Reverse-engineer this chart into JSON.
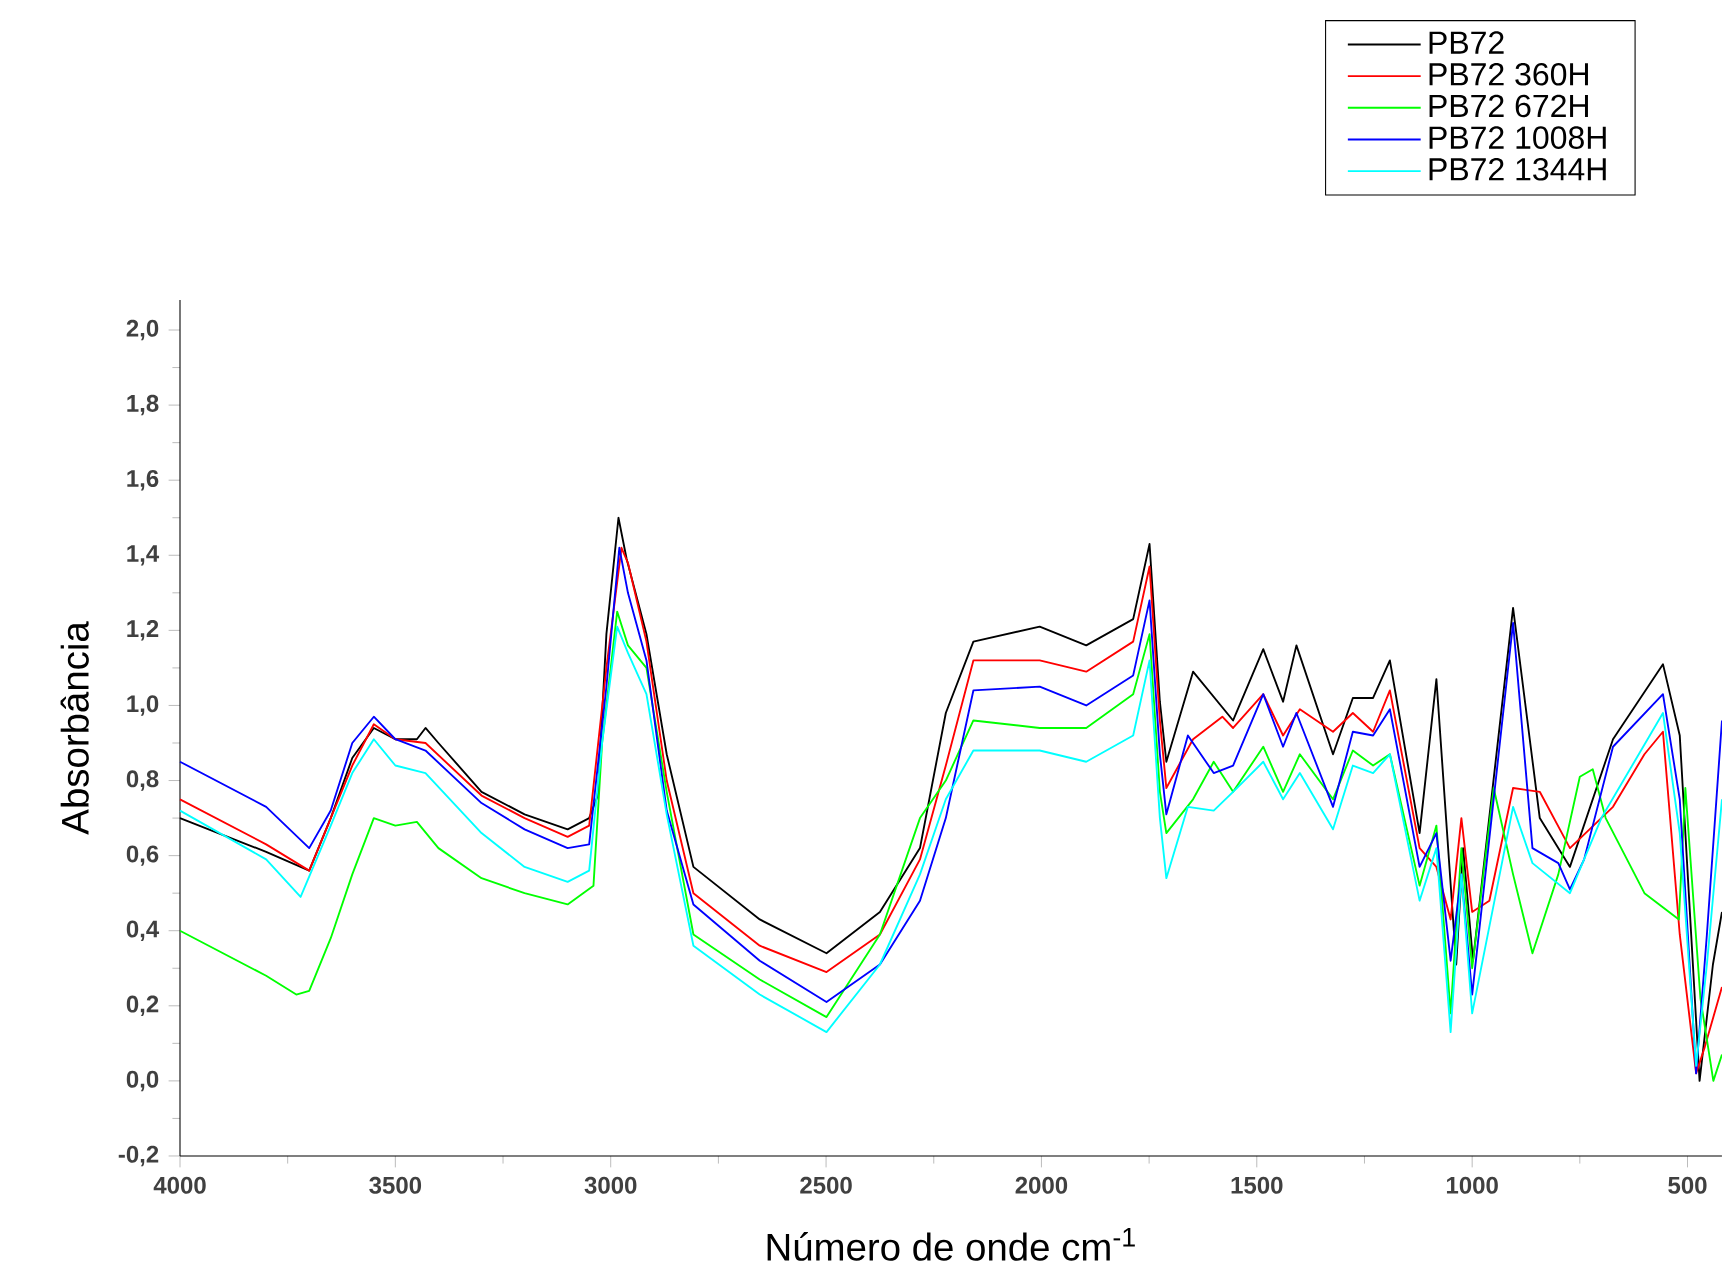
{
  "chart_data": {
    "type": "line",
    "xlabel": "Número de onde cm$^{-1}$",
    "ylabel": "Absorbância",
    "xlim": [
      4000,
      420
    ],
    "xticks": [
      4000,
      3500,
      3000,
      2500,
      2000,
      1500,
      1000,
      500
    ],
    "ylim": [
      -0.2,
      2.08
    ],
    "yticks": [
      {
        "value": -0.2,
        "label": "-0,2"
      },
      {
        "value": 0.0,
        "label": "0,0"
      },
      {
        "value": 0.2,
        "label": "0,2"
      },
      {
        "value": 0.4,
        "label": "0,4"
      },
      {
        "value": 0.6,
        "label": "0,6"
      },
      {
        "value": 0.8,
        "label": "0,8"
      },
      {
        "value": 1.0,
        "label": "1,0"
      },
      {
        "value": 1.2,
        "label": "1,2"
      },
      {
        "value": 1.4,
        "label": "1,4"
      },
      {
        "value": 1.6,
        "label": "1,6"
      },
      {
        "value": 1.8,
        "label": "1,8"
      },
      {
        "value": 2.0,
        "label": "2,0"
      }
    ],
    "legend": "top right",
    "grid": false,
    "marker": "none",
    "line_style": "solid",
    "series": [
      {
        "name": "PB72",
        "color": "#000000",
        "x": [
          4000,
          3800,
          3700,
          3650,
          3600,
          3550,
          3500,
          3450,
          3430,
          3400,
          3300,
          3200,
          3100,
          3050,
          3030,
          3010,
          2982,
          2963,
          2917,
          2870,
          2808,
          2654,
          2499,
          2375,
          2282,
          2222,
          2158,
          2004,
          1896,
          1787,
          1749,
          1725,
          1710,
          1648,
          1555,
          1485,
          1439,
          1408,
          1323,
          1277,
          1230,
          1191,
          1122,
          1083,
          1037,
          1021,
          998,
          905,
          843,
          773,
          673,
          557,
          518,
          472,
          441,
          420
        ],
        "values": [
          0.7,
          0.61,
          0.56,
          0.7,
          0.86,
          0.94,
          0.91,
          0.91,
          0.94,
          0.9,
          0.77,
          0.71,
          0.67,
          0.7,
          0.76,
          1.19,
          1.5,
          1.39,
          1.19,
          0.87,
          0.57,
          0.43,
          0.34,
          0.45,
          0.62,
          0.98,
          1.17,
          1.21,
          1.16,
          1.23,
          1.43,
          1.01,
          0.85,
          1.09,
          0.96,
          1.15,
          1.01,
          1.16,
          0.87,
          1.02,
          1.02,
          1.12,
          0.66,
          1.07,
          0.31,
          0.62,
          0.32,
          1.26,
          0.7,
          0.57,
          0.91,
          1.11,
          0.92,
          0.0,
          0.31,
          0.45
        ]
      },
      {
        "name": "PB72 360H",
        "color": "#ff0000",
        "x": [
          4000,
          3800,
          3700,
          3600,
          3550,
          3500,
          3430,
          3300,
          3200,
          3100,
          3050,
          3010,
          2975,
          2960,
          2917,
          2870,
          2808,
          2654,
          2499,
          2375,
          2282,
          2222,
          2158,
          2004,
          1896,
          1787,
          1749,
          1725,
          1710,
          1648,
          1580,
          1555,
          1485,
          1439,
          1400,
          1323,
          1277,
          1230,
          1191,
          1122,
          1083,
          1050,
          1025,
          1000,
          960,
          905,
          843,
          773,
          673,
          600,
          557,
          518,
          480,
          460,
          420
        ],
        "values": [
          0.75,
          0.63,
          0.56,
          0.84,
          0.95,
          0.91,
          0.9,
          0.76,
          0.7,
          0.65,
          0.68,
          1.1,
          1.42,
          1.38,
          1.17,
          0.8,
          0.5,
          0.36,
          0.29,
          0.39,
          0.59,
          0.84,
          1.12,
          1.12,
          1.09,
          1.17,
          1.37,
          0.96,
          0.78,
          0.91,
          0.97,
          0.94,
          1.03,
          0.92,
          0.99,
          0.93,
          0.98,
          0.93,
          1.04,
          0.62,
          0.57,
          0.43,
          0.7,
          0.45,
          0.48,
          0.78,
          0.77,
          0.62,
          0.73,
          0.87,
          0.93,
          0.39,
          0.02,
          0.09,
          0.25
        ]
      },
      {
        "name": "PB72 672H",
        "color": "#00ff00",
        "x": [
          4000,
          3800,
          3730,
          3700,
          3650,
          3600,
          3550,
          3500,
          3450,
          3400,
          3300,
          3200,
          3100,
          3040,
          3020,
          2985,
          2960,
          2917,
          2870,
          2808,
          2654,
          2499,
          2375,
          2282,
          2222,
          2158,
          2004,
          1896,
          1787,
          1749,
          1725,
          1710,
          1648,
          1600,
          1555,
          1485,
          1439,
          1400,
          1323,
          1277,
          1230,
          1191,
          1122,
          1083,
          1050,
          1025,
          1000,
          950,
          905,
          860,
          800,
          750,
          720,
          690,
          600,
          520,
          505,
          470,
          440,
          420
        ],
        "values": [
          0.4,
          0.28,
          0.23,
          0.24,
          0.38,
          0.55,
          0.7,
          0.68,
          0.69,
          0.62,
          0.54,
          0.5,
          0.47,
          0.52,
          0.9,
          1.25,
          1.16,
          1.1,
          0.77,
          0.39,
          0.27,
          0.17,
          0.39,
          0.7,
          0.8,
          0.96,
          0.94,
          0.94,
          1.03,
          1.19,
          0.77,
          0.66,
          0.75,
          0.85,
          0.77,
          0.89,
          0.77,
          0.87,
          0.75,
          0.88,
          0.84,
          0.87,
          0.52,
          0.68,
          0.18,
          0.62,
          0.3,
          0.78,
          0.55,
          0.34,
          0.55,
          0.81,
          0.83,
          0.7,
          0.5,
          0.43,
          0.78,
          0.22,
          0.0,
          0.07
        ]
      },
      {
        "name": "PB72 1008H",
        "color": "#0000ff",
        "x": [
          4000,
          3800,
          3700,
          3650,
          3600,
          3550,
          3500,
          3430,
          3300,
          3200,
          3100,
          3050,
          3010,
          2980,
          2960,
          2917,
          2870,
          2808,
          2654,
          2499,
          2375,
          2282,
          2222,
          2158,
          2004,
          1896,
          1787,
          1749,
          1725,
          1710,
          1660,
          1600,
          1555,
          1485,
          1439,
          1408,
          1323,
          1277,
          1230,
          1191,
          1122,
          1083,
          1050,
          1025,
          1000,
          905,
          860,
          800,
          773,
          740,
          673,
          557,
          518,
          480,
          455,
          420
        ],
        "values": [
          0.85,
          0.73,
          0.62,
          0.72,
          0.9,
          0.97,
          0.91,
          0.88,
          0.74,
          0.67,
          0.62,
          0.63,
          1.05,
          1.42,
          1.3,
          1.12,
          0.72,
          0.47,
          0.32,
          0.21,
          0.31,
          0.48,
          0.7,
          1.04,
          1.05,
          1.0,
          1.08,
          1.28,
          0.87,
          0.71,
          0.92,
          0.82,
          0.84,
          1.03,
          0.89,
          0.98,
          0.73,
          0.93,
          0.92,
          0.99,
          0.57,
          0.66,
          0.32,
          0.55,
          0.23,
          1.22,
          0.62,
          0.58,
          0.51,
          0.59,
          0.89,
          1.03,
          0.75,
          0.02,
          0.39,
          0.96
        ]
      },
      {
        "name": "PB72 1344H",
        "color": "#00ffff",
        "x": [
          4000,
          3800,
          3720,
          3650,
          3600,
          3550,
          3500,
          3430,
          3300,
          3200,
          3100,
          3050,
          3020,
          2985,
          2960,
          2917,
          2870,
          2808,
          2654,
          2499,
          2375,
          2282,
          2222,
          2158,
          2004,
          1896,
          1787,
          1749,
          1725,
          1710,
          1660,
          1600,
          1555,
          1485,
          1439,
          1400,
          1323,
          1277,
          1230,
          1191,
          1122,
          1083,
          1050,
          1025,
          1000,
          905,
          860,
          773,
          700,
          557,
          518,
          480,
          455,
          420
        ],
        "values": [
          0.72,
          0.59,
          0.49,
          0.68,
          0.82,
          0.91,
          0.84,
          0.82,
          0.66,
          0.57,
          0.53,
          0.56,
          0.9,
          1.21,
          1.14,
          1.03,
          0.71,
          0.36,
          0.23,
          0.13,
          0.31,
          0.55,
          0.75,
          0.88,
          0.88,
          0.85,
          0.92,
          1.12,
          0.7,
          0.54,
          0.73,
          0.72,
          0.77,
          0.85,
          0.75,
          0.82,
          0.67,
          0.84,
          0.82,
          0.87,
          0.48,
          0.62,
          0.13,
          0.55,
          0.18,
          0.73,
          0.58,
          0.5,
          0.7,
          0.98,
          0.66,
          0.04,
          0.31,
          0.75
        ]
      }
    ]
  }
}
